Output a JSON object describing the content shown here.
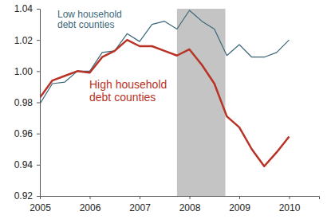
{
  "chart_data": {
    "type": "line",
    "x": [
      2005,
      2005.25,
      2005.5,
      2005.75,
      2006,
      2006.25,
      2006.5,
      2006.75,
      2007,
      2007.25,
      2007.5,
      2007.75,
      2008,
      2008.25,
      2008.5,
      2008.75,
      2009,
      2009.25,
      2009.5,
      2009.75,
      2010
    ],
    "series": [
      {
        "name": "Low household\ndebt counties",
        "color": "#3b6678",
        "values": [
          0.979,
          0.992,
          0.993,
          1.0,
          1.0,
          1.012,
          1.013,
          1.024,
          1.019,
          1.03,
          1.032,
          1.027,
          1.039,
          1.032,
          1.027,
          1.01,
          1.017,
          1.009,
          1.009,
          1.012,
          1.02
        ]
      },
      {
        "name": "High household\ndebt counties",
        "color": "#b83226",
        "values": [
          0.983,
          0.994,
          0.997,
          1.0,
          0.999,
          1.009,
          1.013,
          1.02,
          1.016,
          1.016,
          1.013,
          1.01,
          1.014,
          1.004,
          0.992,
          0.971,
          0.964,
          0.95,
          0.939,
          0.948,
          0.958
        ]
      }
    ],
    "xlim": [
      2005,
      2010.6
    ],
    "xticks": [
      2005,
      2006,
      2007,
      2008,
      2009,
      2010
    ],
    "ylim": [
      0.92,
      1.04
    ],
    "yticks": [
      0.92,
      0.94,
      0.96,
      0.98,
      {
        "value": 1,
        "label": "1.00"
      },
      1.02,
      1.04
    ],
    "shaded_x": [
      2007.75,
      2008.72
    ],
    "grid": false
  }
}
